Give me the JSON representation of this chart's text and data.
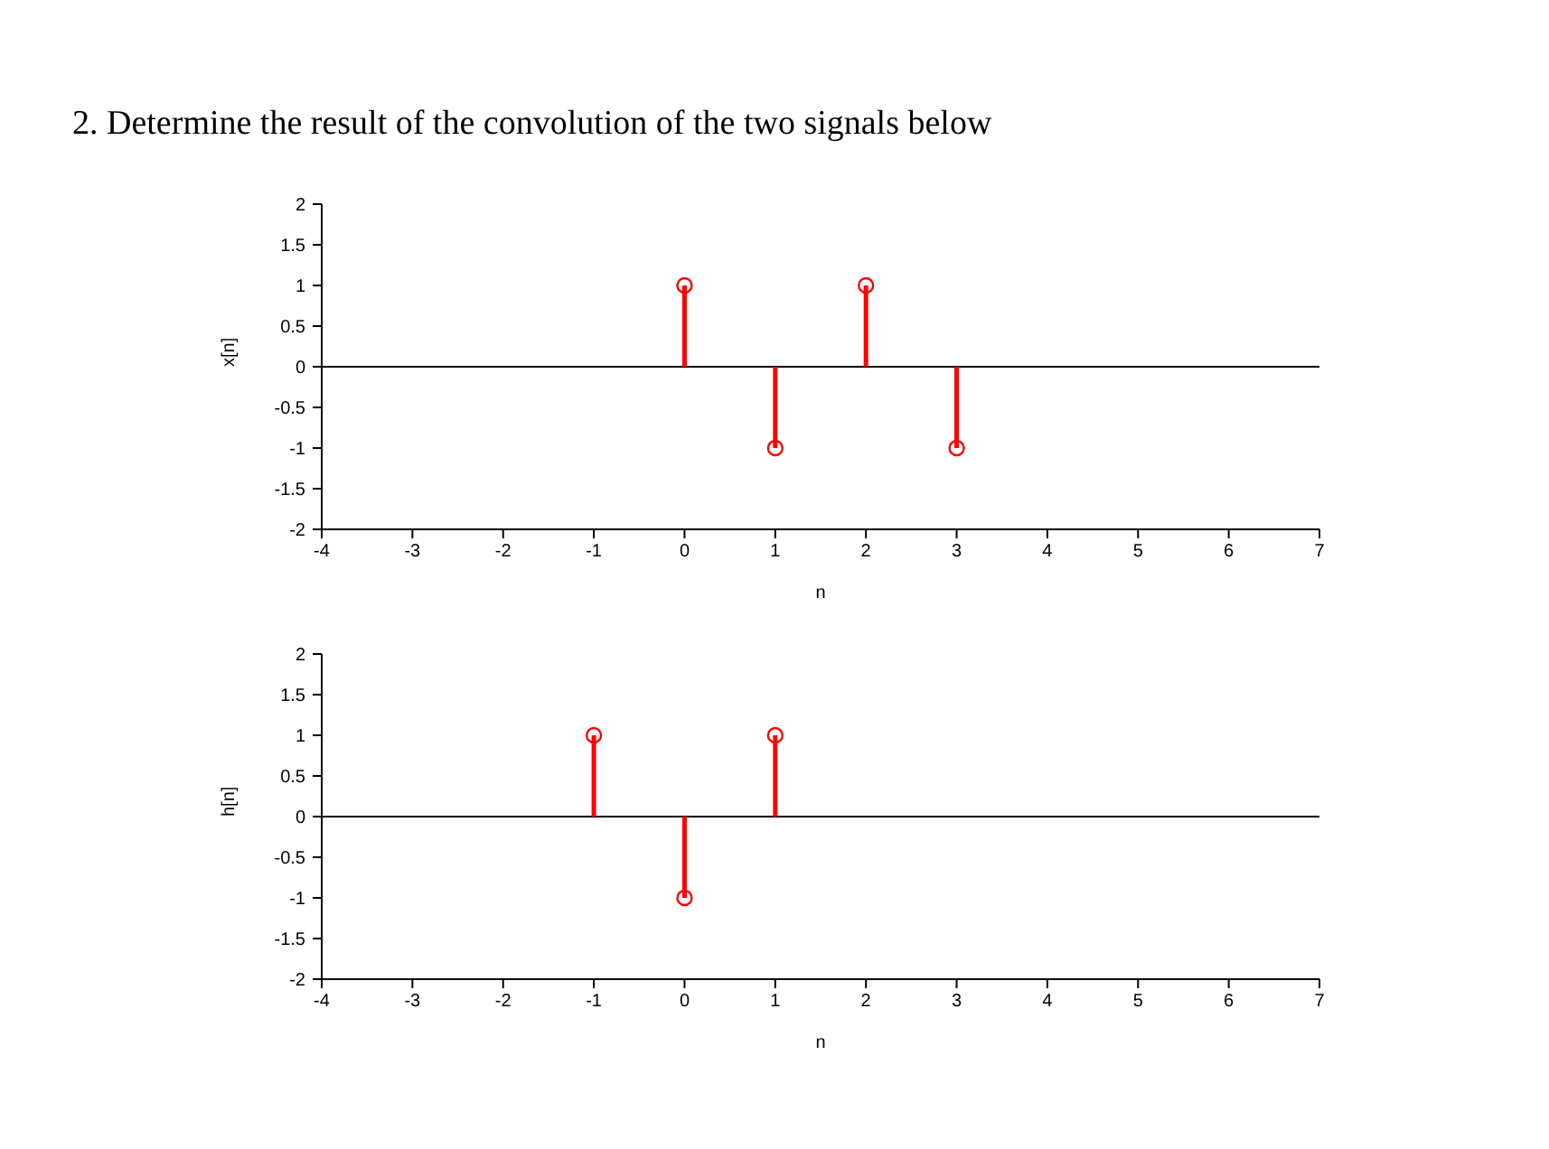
{
  "chart_data": [
    {
      "type": "lollipop",
      "title": "2. Determine the result of the convolution of the two  signals below",
      "xlabel": "n",
      "ylabel": "x[n]",
      "x": [
        0,
        1,
        2,
        3
      ],
      "values": [
        1,
        -1,
        1,
        -1
      ],
      "color": "#ff0000",
      "marker": "circle",
      "xlim": [
        -4,
        7
      ],
      "xticks": [
        -4,
        -3,
        -2,
        -1,
        0,
        1,
        2,
        3,
        4,
        5,
        6,
        7
      ],
      "ylim": [
        -2,
        2
      ],
      "yticks": [
        -2,
        -1.5,
        -1,
        -0.5,
        0,
        0.5,
        1,
        1.5,
        2
      ],
      "ref_lines": [
        {
          "axis": "y",
          "value": 0,
          "color": "#000000"
        }
      ],
      "grid": false,
      "legend": false
    },
    {
      "type": "lollipop",
      "xlabel": "n",
      "ylabel": "h[n]",
      "x": [
        -1,
        0,
        1
      ],
      "values": [
        1,
        -1,
        1
      ],
      "color": "#ff0000",
      "marker": "circle",
      "xlim": [
        -4,
        7
      ],
      "xticks": [
        -4,
        -3,
        -2,
        -1,
        0,
        1,
        2,
        3,
        4,
        5,
        6,
        7
      ],
      "ylim": [
        -2,
        2
      ],
      "yticks": [
        -2,
        -1.5,
        -1,
        -0.5,
        0,
        0.5,
        1,
        1.5,
        2
      ],
      "ref_lines": [
        {
          "axis": "y",
          "value": 0,
          "color": "#000000"
        }
      ],
      "grid": false,
      "legend": false
    }
  ]
}
